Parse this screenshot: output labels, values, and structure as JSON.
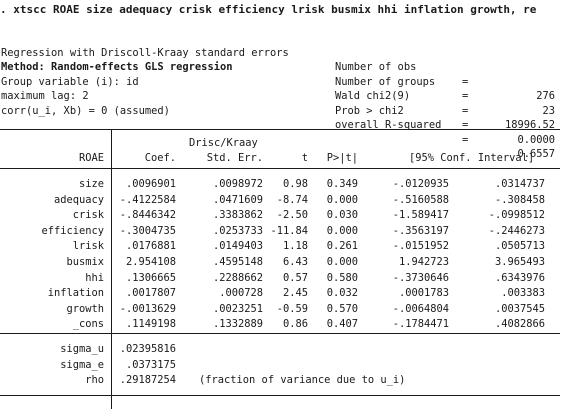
{
  "command": ". xtscc ROAE size adequacy crisk efficiency lrisk busmix hhi inflation growth, re",
  "header": {
    "left": [
      "Regression with Driscoll-Kraay standard errors",
      "Method: Random-effects GLS regression",
      "Group variable (i): id",
      "maximum lag: 2",
      "corr(u_i, Xb) = 0 (assumed)"
    ],
    "right": [
      {
        "label": "Number of obs",
        "eq": "=",
        "value": "276"
      },
      {
        "label": "Number of groups",
        "eq": "=",
        "value": "23"
      },
      {
        "label": "Wald chi2(9)",
        "eq": "=",
        "value": "18996.52"
      },
      {
        "label": "Prob > chi2",
        "eq": "=",
        "value": "0.0000"
      },
      {
        "label": "overall R-squared",
        "eq": "=",
        "value": "0.6557"
      }
    ]
  },
  "table": {
    "super_header": "Drisc/Kraay",
    "dep_var": "ROAE",
    "columns": [
      "Coef.",
      "Std. Err.",
      "t",
      "P>|t|",
      "[95% Conf. Interval]"
    ],
    "rows": [
      {
        "var": "size",
        "coef": ".0096901",
        "se": ".0098972",
        "t": "0.98",
        "p": "0.349",
        "lo": "-.0120935",
        "hi": ".0314737"
      },
      {
        "var": "adequacy",
        "coef": "-.4122584",
        "se": ".0471609",
        "t": "-8.74",
        "p": "0.000",
        "lo": "-.5160588",
        "hi": "-.308458"
      },
      {
        "var": "crisk",
        "coef": "-.8446342",
        "se": ".3383862",
        "t": "-2.50",
        "p": "0.030",
        "lo": "-1.589417",
        "hi": "-.0998512"
      },
      {
        "var": "efficiency",
        "coef": "-.3004735",
        "se": ".0253733",
        "t": "-11.84",
        "p": "0.000",
        "lo": "-.3563197",
        "hi": "-.2446273"
      },
      {
        "var": "lrisk",
        "coef": ".0176881",
        "se": ".0149403",
        "t": "1.18",
        "p": "0.261",
        "lo": "-.0151952",
        "hi": ".0505713"
      },
      {
        "var": "busmix",
        "coef": "2.954108",
        "se": ".4595148",
        "t": "6.43",
        "p": "0.000",
        "lo": "1.942723",
        "hi": "3.965493"
      },
      {
        "var": "hhi",
        "coef": ".1306665",
        "se": ".2288662",
        "t": "0.57",
        "p": "0.580",
        "lo": "-.3730646",
        "hi": ".6343976"
      },
      {
        "var": "inflation",
        "coef": ".0017807",
        "se": ".000728",
        "t": "2.45",
        "p": "0.032",
        "lo": ".0001783",
        "hi": ".003383"
      },
      {
        "var": "growth",
        "coef": "-.0013629",
        "se": ".0023251",
        "t": "-0.59",
        "p": "0.570",
        "lo": "-.0064804",
        "hi": ".0037545"
      },
      {
        "var": "_cons",
        "coef": ".1149198",
        "se": ".1332889",
        "t": "0.86",
        "p": "0.407",
        "lo": "-.1784471",
        "hi": ".4082866"
      }
    ],
    "sigma_rows": [
      {
        "var": "sigma_u",
        "value": ".02395816",
        "note": ""
      },
      {
        "var": "sigma_e",
        "value": ".0373175",
        "note": ""
      },
      {
        "var": "rho",
        "value": ".29187254",
        "note": "(fraction of variance due to u_i)"
      }
    ]
  }
}
